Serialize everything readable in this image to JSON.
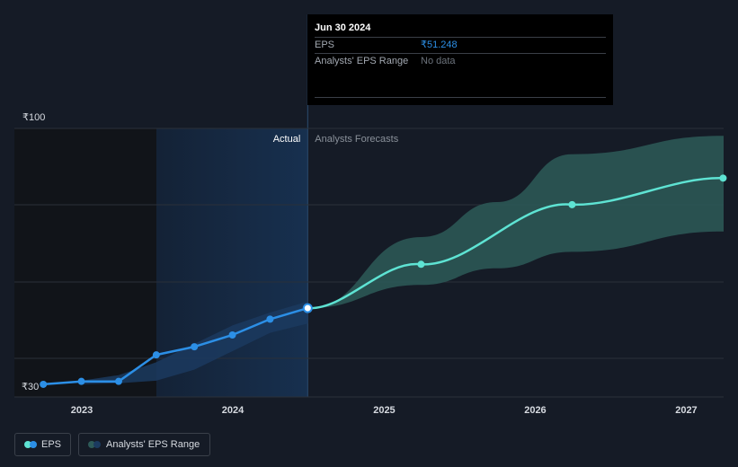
{
  "tooltip": {
    "date": "Jun 30 2024",
    "eps_label": "EPS",
    "eps_value": "₹51.248",
    "range_label": "Analysts' EPS Range",
    "range_value": "No data"
  },
  "legend": {
    "eps": "EPS",
    "range": "Analysts' EPS Range"
  },
  "colors": {
    "eps": "#2c8fe6",
    "forecast": "#5ee3d3",
    "range_band": "#2d5a58",
    "past_band": "#1b3a5f"
  },
  "chart_data": {
    "type": "line",
    "x_ticks": [
      "2023",
      "2024",
      "2025",
      "2026",
      "2027"
    ],
    "y_ticks": [
      "₹100",
      "₹30"
    ],
    "ylim": [
      30,
      100
    ],
    "section_labels": {
      "actual": "Actual",
      "forecast": "Analysts Forecasts"
    },
    "series": [
      {
        "name": "EPS",
        "points": [
          [
            "2022-09-30",
            30.5
          ],
          [
            "2022-12-31",
            31.3
          ],
          [
            "2023-03-31",
            31.3
          ],
          [
            "2023-06-30",
            38.5
          ],
          [
            "2023-09-30",
            40.7
          ],
          [
            "2023-12-31",
            43.9
          ],
          [
            "2024-03-31",
            48.2
          ],
          [
            "2024-06-30",
            51.2
          ]
        ]
      },
      {
        "name": "Analysts Forecasts",
        "points": [
          [
            "2024-06-30",
            51.2
          ],
          [
            "2025-03-31",
            63.1
          ],
          [
            "2026-03-31",
            79.3
          ],
          [
            "2027-03-31",
            86.5
          ]
        ]
      }
    ],
    "past_range": [
      [
        "2022-12-31",
        30.5,
        31.5
      ],
      [
        "2023-03-31",
        30.8,
        33.0
      ],
      [
        "2023-06-30",
        31.5,
        36.5
      ],
      [
        "2023-09-30",
        34.5,
        41.5
      ],
      [
        "2023-12-31",
        39.5,
        46.5
      ],
      [
        "2024-03-31",
        44.5,
        50.0
      ],
      [
        "2024-06-30",
        47.0,
        53.0
      ]
    ],
    "forecast_range": [
      [
        "2024-06-30",
        51.2,
        51.2
      ],
      [
        "2025-03-31",
        57.5,
        70.5
      ],
      [
        "2025-09-30",
        62.0,
        80.0
      ],
      [
        "2026-03-31",
        66.5,
        93.0
      ],
      [
        "2027-03-31",
        72.0,
        98.0
      ]
    ],
    "highlight_date": "Jun 30 2024",
    "grid": true
  }
}
